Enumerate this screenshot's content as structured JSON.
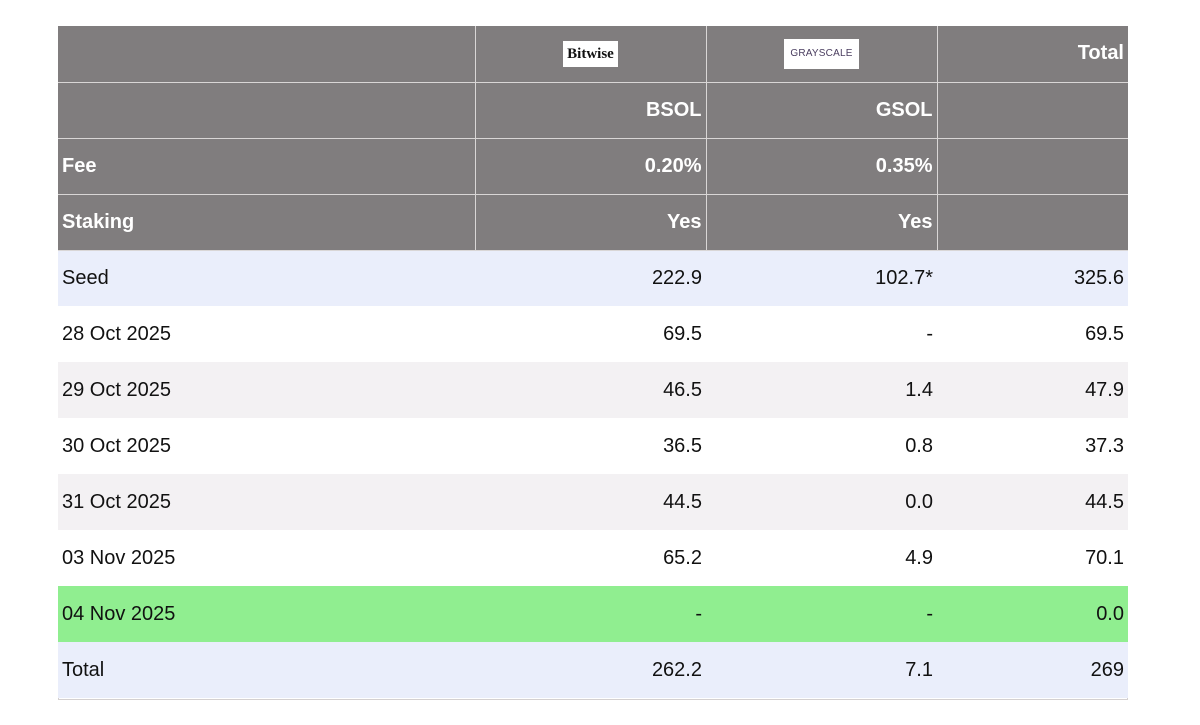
{
  "header": {
    "logos": {
      "bitwise": "Bitwise",
      "grayscale": "GRAYSCALE"
    },
    "total_label": "Total",
    "tickers": {
      "bsol": "BSOL",
      "gsol": "GSOL"
    },
    "fee": {
      "label": "Fee",
      "bsol": "0.20%",
      "gsol": "0.35%"
    },
    "staking": {
      "label": "Staking",
      "bsol": "Yes",
      "gsol": "Yes"
    }
  },
  "rows": [
    {
      "label": "Seed",
      "bsol": "222.9",
      "gsol": "102.7*",
      "total": "325.6"
    },
    {
      "label": "28 Oct 2025",
      "bsol": "69.5",
      "gsol": "-",
      "total": "69.5"
    },
    {
      "label": "29 Oct 2025",
      "bsol": "46.5",
      "gsol": "1.4",
      "total": "47.9"
    },
    {
      "label": "30 Oct 2025",
      "bsol": "36.5",
      "gsol": "0.8",
      "total": "37.3"
    },
    {
      "label": "31 Oct 2025",
      "bsol": "44.5",
      "gsol": "0.0",
      "total": "44.5"
    },
    {
      "label": "03 Nov 2025",
      "bsol": "65.2",
      "gsol": "4.9",
      "total": "70.1"
    },
    {
      "label": "04 Nov 2025",
      "bsol": "-",
      "gsol": "-",
      "total": "0.0"
    },
    {
      "label": "Total",
      "bsol": "262.2",
      "gsol": "7.1",
      "total": "269"
    }
  ],
  "colors": {
    "header_bg": "#807d7e",
    "seed_row_bg": "#eaeefb",
    "alt_row_bg": "#f3f1f3",
    "highlight_row_bg": "#90ee90"
  }
}
